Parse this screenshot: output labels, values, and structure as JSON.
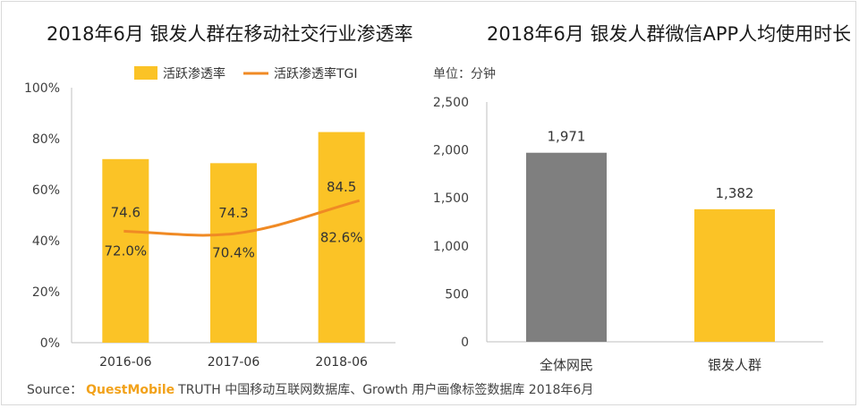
{
  "chart_data": [
    {
      "type": "bar",
      "title": "2018年6月 银发人群在移动社交行业渗透率",
      "categories": [
        "2016-06",
        "2017-06",
        "2018-06"
      ],
      "series": [
        {
          "name": "活跃渗透率",
          "type": "bar",
          "values": [
            72.0,
            70.4,
            82.6
          ],
          "labels": [
            "72.0%",
            "70.4%",
            "82.6%"
          ],
          "color": "#fbc326"
        },
        {
          "name": "活跃渗透率TGI",
          "type": "line",
          "values": [
            74.6,
            74.3,
            84.5
          ],
          "labels": [
            "74.6",
            "74.3",
            "84.5"
          ],
          "color": "#f08a24"
        }
      ],
      "yticks": [
        "0%",
        "20%",
        "40%",
        "60%",
        "80%",
        "100%"
      ],
      "ylim": [
        0,
        100
      ],
      "legend": "top",
      "xlabel": "",
      "ylabel": ""
    },
    {
      "type": "bar",
      "title": "2018年6月 银发人群微信APP人均使用时长",
      "unit": "单位：分钟",
      "categories": [
        "全体网民",
        "银发人群"
      ],
      "values": [
        1971,
        1382
      ],
      "labels": [
        "1,971",
        "1,382"
      ],
      "colors": [
        "#7f7f7f",
        "#fbc326"
      ],
      "yticks": [
        "0",
        "500",
        "1,000",
        "1,500",
        "2,000",
        "2,500"
      ],
      "ylim": [
        0,
        2500
      ],
      "xlabel": "",
      "ylabel": ""
    }
  ],
  "footer": {
    "prefix": "Source：",
    "brand": "QuestMobile",
    "text": "TRUTH 中国移动互联网数据库、Growth 用户画像标签数据库 2018年6月"
  }
}
